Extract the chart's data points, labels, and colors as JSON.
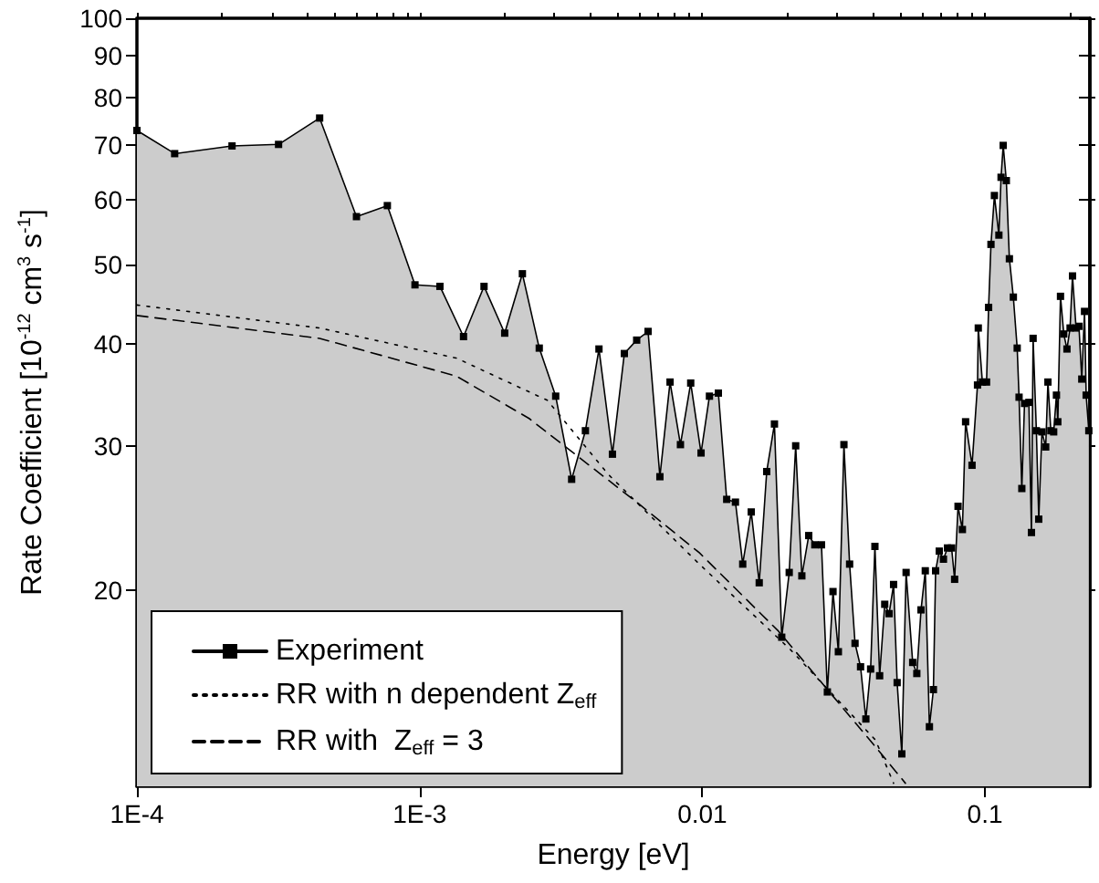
{
  "chart_data": {
    "type": "area",
    "xlabel": "Energy [eV]",
    "ylabel": "Rate Coefficient [10$^{-12}$ cm$^{3}$ s$^{-1}$]",
    "log": "xy",
    "xlim": [
      0.0001,
      0.235
    ],
    "ylim": [
      11.5,
      100
    ],
    "xticks": [
      {
        "value": 0.0001,
        "label": "1E-4"
      },
      {
        "value": 0.001,
        "label": "1E-3"
      },
      0.01,
      0.1
    ],
    "yticks": [
      20,
      30,
      40,
      50,
      60,
      70,
      80,
      90,
      100
    ],
    "grid": false,
    "legend": "bottom left",
    "series": [
      {
        "name": "Experiment",
        "color": "#000000",
        "marker": "square",
        "line_style": "solid",
        "x": [
          0.0001,
          0.000136,
          0.000217,
          0.000317,
          0.000443,
          0.000598,
          0.000769,
          0.000963,
          0.00118,
          0.00143,
          0.00169,
          0.002,
          0.00231,
          0.00265,
          0.00303,
          0.00345,
          0.00386,
          0.00431,
          0.00481,
          0.0053,
          0.00586,
          0.00643,
          0.00708,
          0.00769,
          0.00837,
          0.0091,
          0.0099,
          0.0106,
          0.0114,
          0.0122,
          0.0131,
          0.0139,
          0.0149,
          0.0159,
          0.0169,
          0.018,
          0.0191,
          0.0203,
          0.0214,
          0.0225,
          0.0238,
          0.025,
          0.0264,
          0.0277,
          0.029,
          0.0303,
          0.0317,
          0.0332,
          0.0347,
          0.0363,
          0.0379,
          0.0394,
          0.0408,
          0.0424,
          0.0442,
          0.0458,
          0.0475,
          0.0489,
          0.0508,
          0.0526,
          0.0555,
          0.0574,
          0.0594,
          0.0615,
          0.0636,
          0.0657,
          0.0669,
          0.0689,
          0.0713,
          0.0737,
          0.0762,
          0.0781,
          0.0803,
          0.0832,
          0.0854,
          0.09,
          0.0941,
          0.0947,
          0.0979,
          0.1013,
          0.103,
          0.105,
          0.108,
          0.112,
          0.114,
          0.116,
          0.119,
          0.122,
          0.126,
          0.13,
          0.132,
          0.135,
          0.138,
          0.143,
          0.146,
          0.148,
          0.152,
          0.155,
          0.159,
          0.164,
          0.167,
          0.171,
          0.175,
          0.179,
          0.181,
          0.185,
          0.19,
          0.195,
          0.2,
          0.204,
          0.21,
          0.215,
          0.22,
          0.225,
          0.228,
          0.233
        ],
        "values": [
          72.9,
          68.3,
          69.8,
          70.1,
          75.5,
          57.2,
          59.0,
          47.2,
          47.0,
          40.8,
          47.0,
          41.2,
          48.7,
          39.5,
          34.5,
          27.3,
          31.3,
          39.4,
          29.3,
          38.9,
          40.4,
          41.4,
          27.5,
          35.9,
          30.1,
          35.8,
          29.4,
          34.5,
          34.8,
          25.8,
          25.6,
          21.5,
          24.9,
          20.4,
          27.9,
          31.9,
          17.5,
          21.0,
          30.0,
          20.8,
          23.3,
          22.7,
          22.7,
          15.0,
          19.9,
          16.8,
          30.1,
          21.5,
          17.2,
          16.1,
          13.9,
          16.0,
          22.6,
          15.7,
          19.2,
          18.7,
          20.3,
          15.4,
          12.6,
          21.0,
          16.3,
          15.8,
          18.9,
          21.1,
          13.6,
          15.1,
          21.1,
          22.3,
          21.8,
          22.5,
          22.5,
          20.6,
          25.3,
          23.7,
          32.1,
          28.4,
          35.6,
          41.8,
          35.9,
          35.9,
          44.3,
          52.9,
          60.7,
          54.3,
          63.9,
          69.9,
          63.3,
          50.8,
          45.6,
          39.5,
          34.4,
          26.6,
          33.8,
          33.9,
          23.5,
          40.6,
          31.3,
          24.4,
          31.2,
          29.9,
          35.9,
          31.3,
          31.2,
          34.6,
          32.1,
          45.7,
          41.1,
          39.4,
          41.8,
          48.4,
          41.8,
          42.0,
          36.2,
          43.8,
          34.6,
          31.3
        ]
      },
      {
        "name": "RR with n dependent Z$_{eff}$",
        "type": "line",
        "color": "#000000",
        "marker": "none",
        "line_style": "dotted",
        "x": [
          0.0001,
          0.000443,
          0.00135,
          0.00283,
          0.00464,
          0.00976,
          0.0205,
          0.041,
          0.0475
        ],
        "values": [
          44.6,
          41.8,
          38.4,
          34.1,
          27.7,
          21.5,
          16.9,
          13.1,
          11.6
        ]
      },
      {
        "name": "RR with  Z$_{eff}$ = 3",
        "type": "line",
        "color": "#000000",
        "marker": "none",
        "line_style": "dashed",
        "x": [
          0.0001,
          0.000443,
          0.00135,
          0.00244,
          0.00594,
          0.00976,
          0.0186,
          0.043,
          0.0523
        ],
        "values": [
          43.3,
          40.6,
          36.5,
          32.4,
          25.5,
          22.2,
          17.8,
          12.6,
          11.6
        ]
      }
    ]
  }
}
